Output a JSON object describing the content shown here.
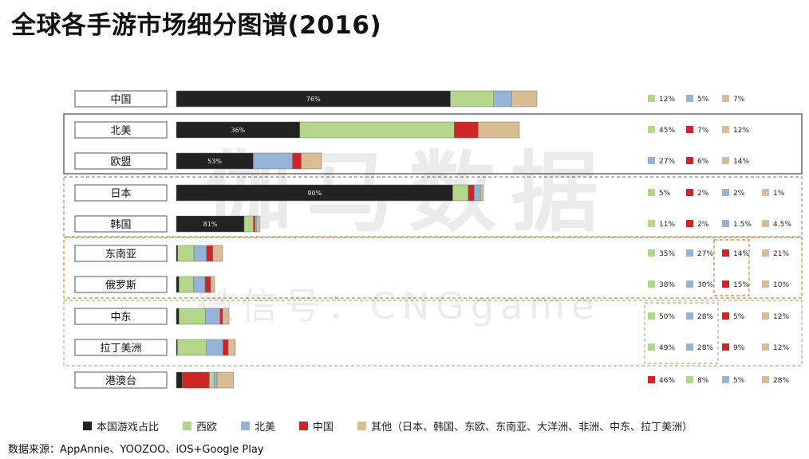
{
  "title": "全球各手游市场细分图谱(2016)",
  "watermark": {
    "main": "伽马数据",
    "sub": "微信号：CNGgame"
  },
  "source": "数据来源：AppAnnie、YOOZOO、iOS+Google Play",
  "colors": {
    "domestic": "#222222",
    "west_europe": "#b3d68a",
    "north_america": "#93b4d6",
    "china": "#cc2626",
    "other": "#d8bd93",
    "box_solid": "#444444",
    "box_gray_dashed": "#8c8c8c",
    "box_orange_dashed": "#e07a2a",
    "box_green_dashed": "#8cc27a"
  },
  "legend": [
    {
      "key": "domestic",
      "label": "本国游戏占比"
    },
    {
      "key": "west_europe",
      "label": "西欧"
    },
    {
      "key": "north_america",
      "label": "北美"
    },
    {
      "key": "china",
      "label": "中国"
    },
    {
      "key": "other",
      "label": "其他（日本、韩国、东欧、东南亚、大洋洲、非洲、中东、拉丁美洲）"
    }
  ],
  "chart_data": {
    "type": "bar",
    "orientation": "horizontal",
    "stacked": true,
    "unit": "%",
    "categories": [
      "中国",
      "北美",
      "欧盟",
      "日本",
      "韩国",
      "东南亚",
      "俄罗斯",
      "中东",
      "拉丁美洲",
      "港澳台"
    ],
    "rows": [
      {
        "market": "中国",
        "total": 100,
        "domestic_label": "76%",
        "segments": [
          {
            "key": "domestic",
            "value": 76,
            "label": "76%"
          },
          {
            "key": "west_europe",
            "value": 12,
            "label": "12%"
          },
          {
            "key": "north_america",
            "value": 5,
            "label": "5%"
          },
          {
            "key": "other",
            "value": 7,
            "label": "7%"
          }
        ]
      },
      {
        "market": "北美",
        "total": 100,
        "domestic_label": "36%",
        "segments": [
          {
            "key": "domestic",
            "value": 36,
            "label": "36%"
          },
          {
            "key": "west_europe",
            "value": 45,
            "label": "45%"
          },
          {
            "key": "china",
            "value": 7,
            "label": "7%"
          },
          {
            "key": "other",
            "value": 12,
            "label": "12%"
          }
        ]
      },
      {
        "market": "欧盟",
        "total": 100,
        "domestic_label": "53%",
        "segments": [
          {
            "key": "domestic",
            "value": 53,
            "label": "53%"
          },
          {
            "key": "north_america",
            "value": 27,
            "label": "27%"
          },
          {
            "key": "china",
            "value": 6,
            "label": "6%"
          },
          {
            "key": "other",
            "value": 14,
            "label": "14%"
          }
        ]
      },
      {
        "market": "日本",
        "total": 100,
        "domestic_label": "90%",
        "segments": [
          {
            "key": "domestic",
            "value": 90,
            "label": "90%"
          },
          {
            "key": "west_europe",
            "value": 5,
            "label": "5%"
          },
          {
            "key": "china",
            "value": 2,
            "label": "2%"
          },
          {
            "key": "north_america",
            "value": 2,
            "label": "2%"
          },
          {
            "key": "other",
            "value": 1,
            "label": "1%"
          }
        ]
      },
      {
        "market": "韩国",
        "total": 100,
        "domestic_label": "81%",
        "segments": [
          {
            "key": "domestic",
            "value": 81,
            "label": "81%"
          },
          {
            "key": "west_europe",
            "value": 11,
            "label": "11%"
          },
          {
            "key": "china",
            "value": 2,
            "label": "2%"
          },
          {
            "key": "north_america",
            "value": 1.5,
            "label": "1.5%"
          },
          {
            "key": "other",
            "value": 4.5,
            "label": "4.5%"
          }
        ]
      },
      {
        "market": "东南亚",
        "total": 100,
        "domestic_label": "",
        "segments": [
          {
            "key": "domestic",
            "value": 3,
            "label": ""
          },
          {
            "key": "west_europe",
            "value": 35,
            "label": "35%"
          },
          {
            "key": "north_america",
            "value": 27,
            "label": "27%"
          },
          {
            "key": "china",
            "value": 14,
            "label": "14%"
          },
          {
            "key": "other",
            "value": 21,
            "label": "21%"
          }
        ]
      },
      {
        "market": "俄罗斯",
        "total": 100,
        "domestic_label": "",
        "segments": [
          {
            "key": "domestic",
            "value": 7,
            "label": ""
          },
          {
            "key": "west_europe",
            "value": 38,
            "label": "38%"
          },
          {
            "key": "north_america",
            "value": 30,
            "label": "30%"
          },
          {
            "key": "china",
            "value": 15,
            "label": "15%"
          },
          {
            "key": "other",
            "value": 10,
            "label": "10%"
          }
        ]
      },
      {
        "market": "中东",
        "total": 100,
        "domestic_label": "",
        "segments": [
          {
            "key": "domestic",
            "value": 5,
            "label": ""
          },
          {
            "key": "west_europe",
            "value": 50,
            "label": "50%"
          },
          {
            "key": "north_america",
            "value": 28,
            "label": "28%"
          },
          {
            "key": "china",
            "value": 5,
            "label": "5%"
          },
          {
            "key": "other",
            "value": 12,
            "label": "12%"
          }
        ]
      },
      {
        "market": "拉丁美洲",
        "total": 100,
        "domestic_label": "",
        "segments": [
          {
            "key": "domestic",
            "value": 2,
            "label": ""
          },
          {
            "key": "west_europe",
            "value": 49,
            "label": "49%"
          },
          {
            "key": "north_america",
            "value": 28,
            "label": "28%"
          },
          {
            "key": "china",
            "value": 9,
            "label": "9%"
          },
          {
            "key": "other",
            "value": 12,
            "label": "12%"
          }
        ]
      },
      {
        "market": "港澳台",
        "total": 100,
        "domestic_label": "",
        "segments": [
          {
            "key": "domestic",
            "value": 10,
            "label": ""
          },
          {
            "key": "china",
            "value": 46,
            "label": "46%"
          },
          {
            "key": "west_europe",
            "value": 8,
            "label": "8%"
          },
          {
            "key": "north_america",
            "value": 5,
            "label": "5%"
          },
          {
            "key": "other",
            "value": 28,
            "label": "28%"
          }
        ]
      }
    ],
    "groups": [
      {
        "name": "北美-欧盟",
        "markets": [
          "北美",
          "欧盟"
        ],
        "style": "solid"
      },
      {
        "name": "日本-韩国",
        "markets": [
          "日本",
          "韩国"
        ],
        "style": "gray-dashed"
      },
      {
        "name": "东南亚-俄罗斯",
        "markets": [
          "东南亚",
          "俄罗斯"
        ],
        "style": "orange-dashed"
      },
      {
        "name": "中东-拉丁美洲",
        "markets": [
          "中东",
          "拉丁美洲"
        ],
        "style": "green-dashed"
      }
    ],
    "highlights": [
      {
        "markets": [
          "东南亚",
          "俄罗斯"
        ],
        "key": "china",
        "style": "orange-dashed"
      },
      {
        "markets": [
          "中东",
          "拉丁美洲"
        ],
        "keys": [
          "west_europe",
          "north_america"
        ],
        "style": "green-dashed"
      }
    ]
  }
}
